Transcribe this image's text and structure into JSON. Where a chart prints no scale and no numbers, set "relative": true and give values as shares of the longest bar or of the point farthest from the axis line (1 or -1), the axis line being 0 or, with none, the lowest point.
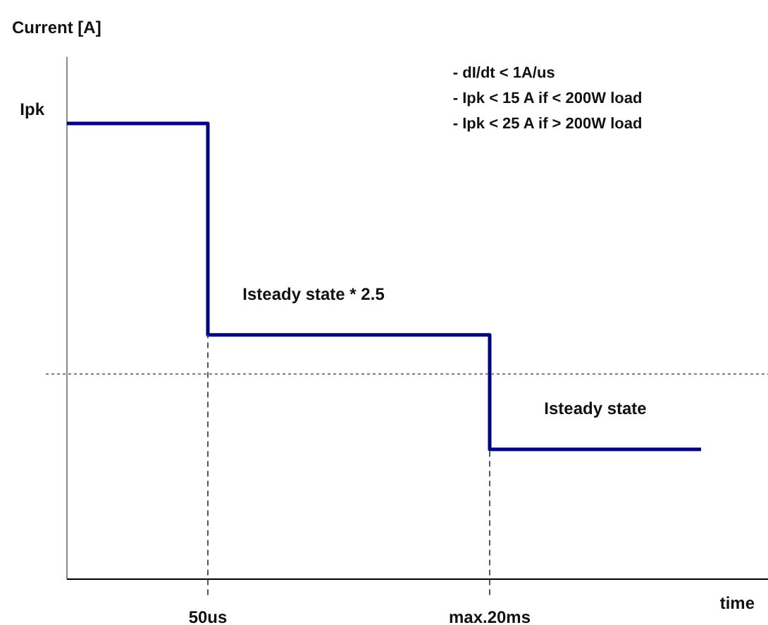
{
  "chart_data": {
    "type": "step",
    "relative": true,
    "xlabel": "time",
    "categories": [
      null,
      null,
      "50us",
      null,
      null,
      null,
      "max.20ms",
      null,
      null,
      null
    ],
    "series": [
      {
        "color": "#000080",
        "values": [
          1,
          1,
          0.536,
          0.536,
          0.536,
          0.536,
          0.285,
          0.285,
          0.285,
          0.285
        ]
      }
    ],
    "ref_lines": [
      {
        "axis": "x",
        "value": "50us",
        "line_style": "dashed",
        "color": "#555555"
      },
      {
        "axis": "x",
        "value": "max.20ms",
        "line_style": "dashed",
        "color": "#555555"
      },
      {
        "axis": "y",
        "value": 0.45,
        "line_style": "dotted",
        "color": "#777777"
      }
    ],
    "annotations": [
      "Current [A]",
      "Ipk",
      {
        "text": "Isteady state * 2.5",
        "y": 0.536
      },
      {
        "text": "Isteady state",
        "y": 0.285
      },
      "- dI/dt < 1A/us",
      "- Ipk < 15 A if < 200W load",
      "- Ipk < 25 A if > 200W load"
    ]
  }
}
